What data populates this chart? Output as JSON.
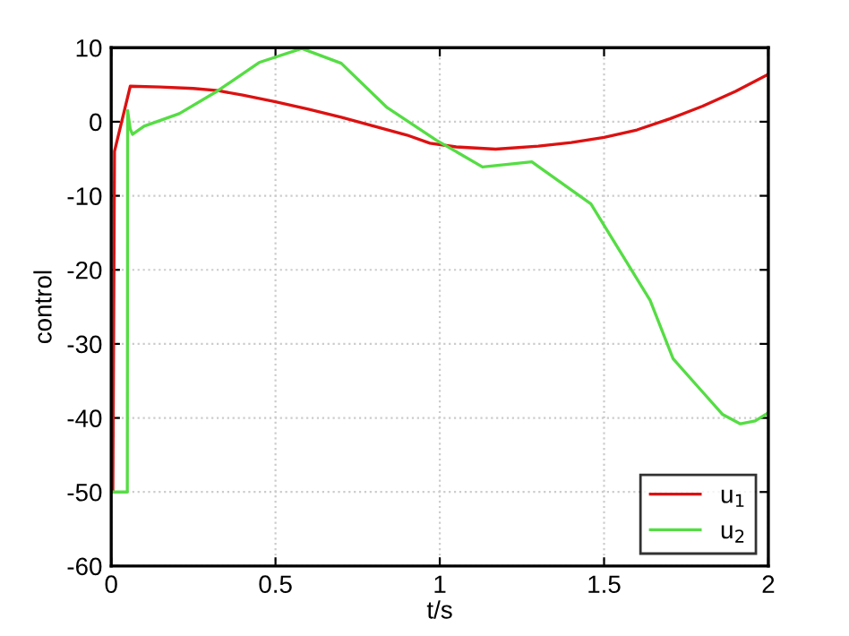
{
  "chart_data": {
    "type": "line",
    "xlabel": "t/s",
    "ylabel": "control",
    "xlim": [
      0,
      2
    ],
    "ylim": [
      -60,
      10
    ],
    "xticks": [
      0,
      0.5,
      1,
      1.5,
      2
    ],
    "yticks": [
      -60,
      -50,
      -40,
      -30,
      -20,
      -10,
      0,
      10
    ],
    "grid": true,
    "legend": "bottom right",
    "line_style": "solid",
    "marker": "none",
    "series": [
      {
        "name": "u$_{1}$",
        "color": "#dd1111",
        "x": [
          0,
          0.005,
          0.01,
          0.058,
          0.15,
          0.25,
          0.325,
          0.4,
          0.5,
          0.6,
          0.7,
          0.8,
          0.9,
          0.97,
          1.05,
          1.17,
          1.3,
          1.4,
          1.5,
          1.6,
          1.7,
          1.8,
          1.9,
          2.0
        ],
        "values": [
          -50,
          -50,
          -4,
          4.8,
          4.7,
          4.5,
          4.2,
          3.6,
          2.7,
          1.7,
          0.6,
          -0.6,
          -1.8,
          -2.9,
          -3.4,
          -3.7,
          -3.3,
          -2.8,
          -2.1,
          -1.1,
          0.4,
          2.1,
          4.1,
          6.4
        ]
      },
      {
        "name": "u$_{2}$",
        "color": "#55dd44",
        "x": [
          0,
          0.049,
          0.05,
          0.058,
          0.065,
          0.1,
          0.207,
          0.325,
          0.45,
          0.58,
          0.7,
          0.84,
          0.99,
          1.13,
          1.28,
          1.46,
          1.64,
          1.71,
          1.79,
          1.86,
          1.915,
          1.96,
          2.0
        ],
        "values": [
          -50,
          -50,
          1.5,
          -1.0,
          -1.7,
          -0.6,
          1.1,
          4.2,
          8.0,
          9.9,
          7.9,
          1.9,
          -2.5,
          -6.1,
          -5.4,
          -11.1,
          -24.1,
          -32,
          -36.0,
          -39.5,
          -40.8,
          -40.4,
          -39.3
        ]
      }
    ]
  }
}
